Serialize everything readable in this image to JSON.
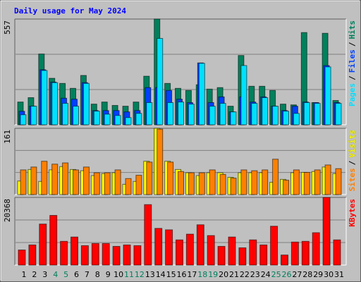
{
  "title": "Daily usage for May 2024",
  "categories": [
    "1",
    "2",
    "3",
    "4",
    "5",
    "6",
    "7",
    "8",
    "9",
    "10",
    "11",
    "12",
    "13",
    "14",
    "15",
    "16",
    "17",
    "18",
    "19",
    "20",
    "21",
    "22",
    "23",
    "24",
    "25",
    "26",
    "27",
    "28",
    "29",
    "30",
    "31"
  ],
  "highlight_color": "#00805c",
  "highlight_indices": [
    3,
    4,
    10,
    11,
    17,
    18,
    24,
    25
  ],
  "legend_separator": "/",
  "grid_divisions": 3,
  "chart_data": [
    {
      "type": "bar",
      "ylim": [
        0,
        557
      ],
      "yticks": [
        557
      ],
      "series": [
        {
          "name": "Hits",
          "color": "#00805c",
          "values": [
            120,
            143,
            373,
            245,
            218,
            192,
            260,
            109,
            120,
            102,
            98,
            120,
            256,
            557,
            218,
            192,
            181,
            211,
            188,
            196,
            98,
            365,
            203,
            203,
            181,
            109,
            105,
            486,
            117,
            482,
            128
          ]
        },
        {
          "name": "Files",
          "color": "#0040ff",
          "values": [
            71,
            98,
            290,
            225,
            140,
            135,
            222,
            75,
            75,
            75,
            68,
            75,
            196,
            196,
            181,
            135,
            117,
            326,
            117,
            147,
            68,
            147,
            120,
            147,
            98,
            75,
            98,
            120,
            117,
            312,
            117
          ]
        },
        {
          "name": "Pages",
          "color": "#00e0ff",
          "values": [
            53,
            98,
            286,
            222,
            113,
            98,
            218,
            72,
            56,
            49,
            38,
            60,
            117,
            455,
            117,
            120,
            109,
            324,
            98,
            113,
            68,
            312,
            113,
            143,
            98,
            72,
            60,
            117,
            113,
            305,
            113
          ]
        }
      ]
    },
    {
      "type": "bar",
      "ylim": [
        0,
        161
      ],
      "yticks": [
        161
      ],
      "series": [
        {
          "name": "Visits",
          "color": "#ffff00",
          "values": [
            33,
            61,
            32,
            60,
            68,
            61,
            58,
            46,
            51,
            53,
            25,
            32,
            81,
            161,
            81,
            61,
            53,
            46,
            53,
            53,
            42,
            53,
            53,
            53,
            30,
            37,
            53,
            54,
            56,
            67,
            51
          ]
        },
        {
          "name": "Sites",
          "color": "#ff8000",
          "values": [
            60,
            67,
            81,
            74,
            77,
            60,
            67,
            53,
            53,
            60,
            39,
            47,
            79,
            159,
            79,
            56,
            53,
            53,
            60,
            49,
            40,
            60,
            58,
            60,
            86,
            35,
            60,
            54,
            60,
            72,
            63
          ]
        }
      ]
    },
    {
      "type": "bar",
      "ylim": [
        0,
        20368
      ],
      "yticks": [
        20368
      ],
      "series": [
        {
          "name": "KBytes",
          "color": "#ff0000",
          "values": [
            4550,
            6068,
            12352,
            14952,
            7151,
            8451,
            5851,
            6501,
            6501,
            5634,
            6068,
            5851,
            18203,
            11052,
            10618,
            7585,
            9318,
            12135,
            8885,
            5634,
            8451,
            5201,
            7585,
            6068,
            11702,
            3034,
            6934,
            7151,
            9752,
            20368,
            7585
          ]
        }
      ]
    }
  ]
}
